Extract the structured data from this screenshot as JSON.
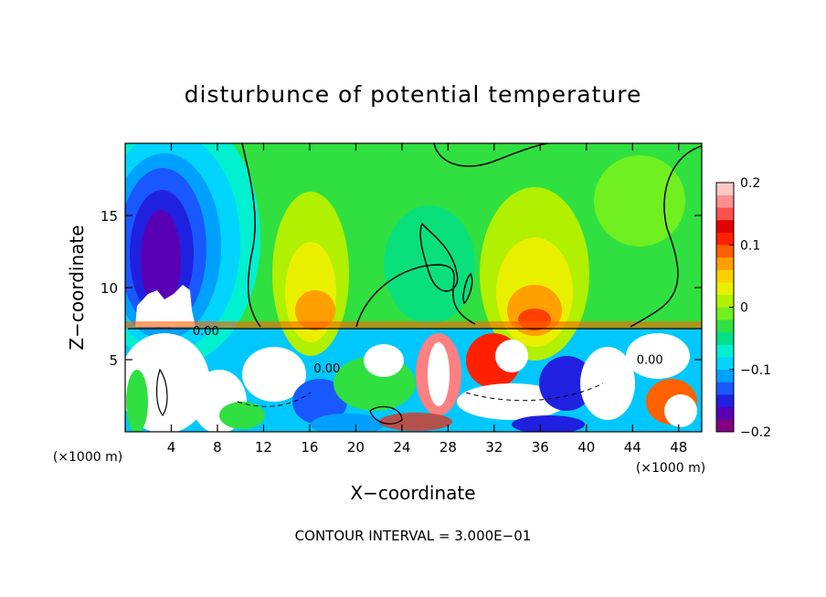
{
  "chart_data": {
    "type": "heatmap",
    "title": "disturbunce of potential temperature",
    "xlabel": "X−coordinate",
    "ylabel": "Z−coordinate",
    "x_unit_left": "(×1000 m)",
    "x_unit_right": "(×1000 m)",
    "footer": "CONTOUR INTERVAL = 3.000E−01",
    "xlim": [
      0,
      50
    ],
    "ylim": [
      0,
      20
    ],
    "x_ticks": [
      4,
      8,
      12,
      16,
      20,
      24,
      28,
      32,
      36,
      40,
      44,
      48
    ],
    "y_ticks": [
      5,
      10,
      15
    ],
    "contour_labels": [
      {
        "text": "0.00",
        "x": 7,
        "y": 6.7
      },
      {
        "text": "0.00",
        "x": 17.5,
        "y": 4.1
      },
      {
        "text": "0.00",
        "x": 45.5,
        "y": 4.7
      }
    ],
    "colorbar": {
      "range": [
        -0.2,
        0.2
      ],
      "ticks": [
        0.2,
        0.1,
        0,
        -0.1,
        -0.2
      ],
      "tick_labels": [
        "0.2",
        "0.1",
        "0",
        "−0.1",
        "−0.2"
      ],
      "colors": [
        "#800080",
        "#5a00b4",
        "#2020e0",
        "#1a58ff",
        "#00a0ff",
        "#00d4ff",
        "#00f0d0",
        "#00e08a",
        "#30e040",
        "#70f020",
        "#b0f000",
        "#e8f000",
        "#ffd000",
        "#ffa000",
        "#ff6000",
        "#ff2000",
        "#e00000",
        "#ff5050",
        "#ff9090",
        "#ffc8c8"
      ]
    }
  }
}
